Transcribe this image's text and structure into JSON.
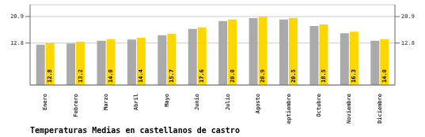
{
  "chart_data": {
    "type": "bar",
    "title": "Temperaturas Medias en castellanos de castro",
    "categories": [
      "Enero",
      "Febrero",
      "Marzo",
      "Abril",
      "Mayo",
      "Junio",
      "Julio",
      "Agosto",
      "Septiembre",
      "Octubre",
      "Noviembre",
      "Diciembre"
    ],
    "series": [
      {
        "color": "#AAAAAA",
        "values": [
          12.3,
          12.7,
          13.5,
          13.9,
          15.2,
          17.1,
          19.5,
          20.4,
          20.0,
          18.0,
          15.8,
          13.5
        ]
      },
      {
        "color": "#FFD700",
        "values": [
          12.8,
          13.2,
          14.0,
          14.4,
          15.7,
          17.6,
          20.0,
          20.9,
          20.5,
          18.5,
          16.3,
          14.0
        ],
        "data_labels": true,
        "value_labels": [
          "12.8",
          "13.2",
          "14.0",
          "14.4",
          "15.7",
          "17.6",
          "20.0",
          "20.9",
          "20.5",
          "18.5",
          "16.3",
          "14.0"
        ]
      }
    ],
    "ylim": [
      0.0,
      24.5
    ],
    "yticks": [
      20.9,
      12.8
    ],
    "y2lim": [
      0.0,
      24.5
    ],
    "y2ticks": [
      20.9,
      12.8
    ],
    "grid": true
  }
}
